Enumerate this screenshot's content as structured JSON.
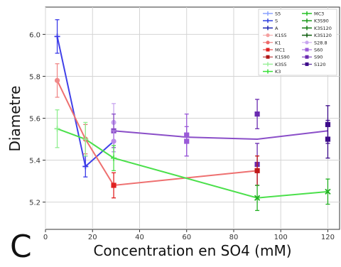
{
  "panel_label": "C",
  "chart_data": {
    "type": "scatter",
    "title": "",
    "xlabel": "Concentration en SO4 (mM)",
    "ylabel": "Diametre",
    "xlim": [
      0,
      125
    ],
    "ylim": [
      5.07,
      6.13
    ],
    "xticks": [
      0,
      20,
      40,
      60,
      80,
      100,
      120
    ],
    "yticks": [
      5.2,
      5.4,
      5.6,
      5.8,
      6.0
    ],
    "ytick_labels": [
      "5.2",
      "5.4",
      "5.6",
      "5.8",
      "6.0"
    ],
    "grid": true,
    "legend_position": "top-right",
    "legend": [
      {
        "name": "S5",
        "color": "#8aa2ff",
        "marker": "errorbar"
      },
      {
        "name": "S",
        "color": "#2e3fe0",
        "marker": "errorbar"
      },
      {
        "name": "A",
        "color": "#1a22b0",
        "marker": "errorbar"
      },
      {
        "name": "K1S5",
        "color": "#f4a0a0",
        "marker": "circle"
      },
      {
        "name": "K1",
        "color": "#ee6b6b",
        "marker": "circle"
      },
      {
        "name": "MC1",
        "color": "#e02020",
        "marker": "square"
      },
      {
        "name": "K1S90",
        "color": "#b01818",
        "marker": "square"
      },
      {
        "name": "K3S5",
        "color": "#9af09a",
        "marker": "errorbar"
      },
      {
        "name": "K3",
        "color": "#38e038",
        "marker": "errorbar"
      },
      {
        "name": "MC3",
        "color": "#22c022",
        "marker": "errorbar"
      },
      {
        "name": "K3S90",
        "color": "#1a9a1a",
        "marker": "errorbar"
      },
      {
        "name": "K3S120",
        "color": "#0f7a0f",
        "marker": "errorbar"
      },
      {
        "name": "K3S120",
        "color": "#0a5a0a",
        "marker": "errorbar"
      },
      {
        "name": "S28.8",
        "color": "#c9a6f0",
        "marker": "circle"
      },
      {
        "name": "S60",
        "color": "#9a5ad8",
        "marker": "square"
      },
      {
        "name": "S90",
        "color": "#6a2ab0",
        "marker": "square"
      },
      {
        "name": "S120",
        "color": "#3c0a8a",
        "marker": "square"
      }
    ],
    "lines": [
      {
        "color": "#4040e8",
        "x": [
          5,
          17,
          29
        ],
        "y": [
          5.99,
          5.37,
          5.49
        ]
      },
      {
        "color": "#ee7070",
        "x": [
          5,
          17,
          29,
          90
        ],
        "y": [
          5.78,
          5.5,
          5.28,
          5.35
        ]
      },
      {
        "color": "#4be04b",
        "x": [
          5,
          17,
          29,
          90,
          120
        ],
        "y": [
          5.55,
          5.5,
          5.41,
          5.22,
          5.25
        ]
      },
      {
        "color": "#8a4ec8",
        "x": [
          29,
          60,
          90,
          120
        ],
        "y": [
          5.54,
          5.51,
          5.5,
          5.54
        ]
      }
    ],
    "points": [
      {
        "x": 5,
        "y": 5.99,
        "err": 0.08,
        "color": "#3a3ae8",
        "marker": "plus"
      },
      {
        "x": 5,
        "y": 5.78,
        "err": 0.08,
        "color": "#f08a8a",
        "marker": "circle"
      },
      {
        "x": 5,
        "y": 5.55,
        "err": 0.09,
        "color": "#90ee90",
        "marker": "plus"
      },
      {
        "x": 17,
        "y": 5.37,
        "err": 0.05,
        "color": "#3a3ae8",
        "marker": "plus"
      },
      {
        "x": 17,
        "y": 5.5,
        "err": 0.07,
        "color": "#e87070",
        "marker": "circle"
      },
      {
        "x": 17,
        "y": 5.5,
        "err": 0.08,
        "color": "#90ee90",
        "marker": "plus"
      },
      {
        "x": 29,
        "y": 5.58,
        "err": 0.09,
        "color": "#c9a6f0",
        "marker": "circle"
      },
      {
        "x": 29,
        "y": 5.54,
        "err": 0.08,
        "color": "#8a4ec8",
        "marker": "square"
      },
      {
        "x": 29,
        "y": 5.49,
        "err": 0.05,
        "color": "#b98ae8",
        "marker": "circle"
      },
      {
        "x": 29,
        "y": 5.41,
        "err": 0.06,
        "color": "#4be04b",
        "marker": "plus"
      },
      {
        "x": 29,
        "y": 5.28,
        "err": 0.06,
        "color": "#e02020",
        "marker": "square"
      },
      {
        "x": 60,
        "y": 5.52,
        "err": 0.1,
        "color": "#9a5ad8",
        "marker": "square"
      },
      {
        "x": 60,
        "y": 5.49,
        "err": 0.07,
        "color": "#9a5ad8",
        "marker": "square"
      },
      {
        "x": 90,
        "y": 5.62,
        "err": 0.07,
        "color": "#6a2ab0",
        "marker": "square"
      },
      {
        "x": 90,
        "y": 5.38,
        "err": 0.1,
        "color": "#6a2ab0",
        "marker": "square"
      },
      {
        "x": 90,
        "y": 5.35,
        "err": 0.07,
        "color": "#c01818",
        "marker": "square"
      },
      {
        "x": 90,
        "y": 5.22,
        "err": 0.06,
        "color": "#22b022",
        "marker": "x"
      },
      {
        "x": 120,
        "y": 5.57,
        "err": 0.09,
        "color": "#3c0a8a",
        "marker": "square"
      },
      {
        "x": 120,
        "y": 5.5,
        "err": 0.09,
        "color": "#3c0a8a",
        "marker": "square"
      },
      {
        "x": 120,
        "y": 5.25,
        "err": 0.06,
        "color": "#22b022",
        "marker": "x"
      }
    ]
  }
}
